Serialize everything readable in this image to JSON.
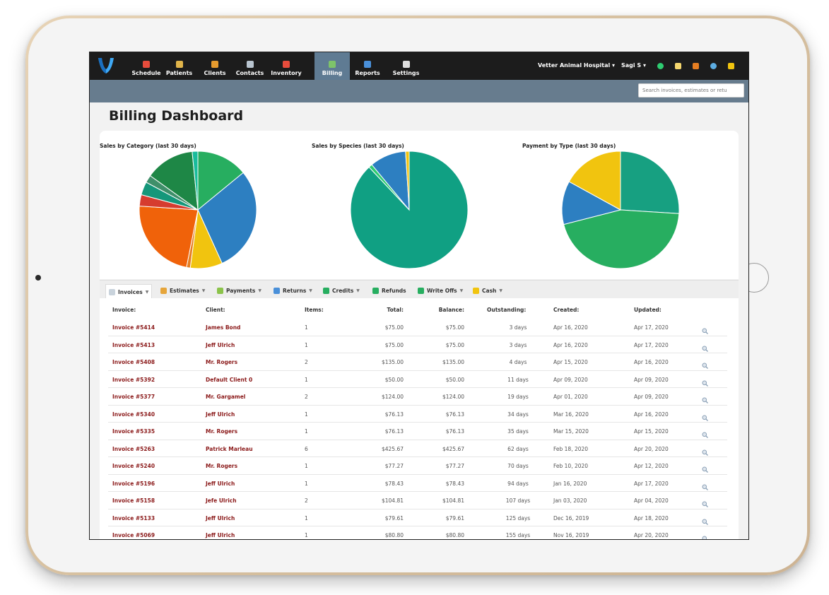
{
  "nav": {
    "items": [
      {
        "label": "Schedule",
        "icon": "calendar-icon",
        "color": "#e74c3c"
      },
      {
        "label": "Patients",
        "icon": "patient-icon",
        "color": "#e0b44a"
      },
      {
        "label": "Clients",
        "icon": "client-icon",
        "color": "#e69b2e"
      },
      {
        "label": "Contacts",
        "icon": "contacts-icon",
        "color": "#b8c4cf"
      },
      {
        "label": "Inventory",
        "icon": "pill-icon",
        "color": "#e74c3c"
      },
      {
        "label": "Billing",
        "icon": "billing-icon",
        "color": "#7ec36a"
      },
      {
        "label": "Reports",
        "icon": "reports-icon",
        "color": "#4a90d9"
      },
      {
        "label": "Settings",
        "icon": "gear-icon",
        "color": "#dddddd"
      }
    ],
    "active": "Billing",
    "hospital": "Vetter Animal Hospital",
    "user": "Sagi S"
  },
  "search": {
    "placeholder": "Search invoices, estimates or retu"
  },
  "page": {
    "title": "Billing Dashboard"
  },
  "charts": [
    {
      "title": "Sales by Category (last 30 days)",
      "chart_data": {
        "type": "pie",
        "slices": [
          {
            "value": 13.5,
            "color": "#27ae60"
          },
          {
            "value": 28,
            "color": "#2d7fc1"
          },
          {
            "value": 8.5,
            "color": "#f1c40f"
          },
          {
            "value": 1,
            "color": "#e67e22"
          },
          {
            "value": 22,
            "color": "#f0620a"
          },
          {
            "value": 3,
            "color": "#d63c2f"
          },
          {
            "value": 3.5,
            "color": "#15977a"
          },
          {
            "value": 2,
            "color": "#3f8f6a"
          },
          {
            "value": 13,
            "color": "#1e8746"
          },
          {
            "value": 1.5,
            "color": "#1abc9c"
          }
        ]
      }
    },
    {
      "title": "Sales by Species (last 30 days)",
      "chart_data": {
        "type": "pie",
        "slices": [
          {
            "value": 88,
            "color": "#10a083"
          },
          {
            "value": 1,
            "color": "#2ecc71"
          },
          {
            "value": 10,
            "color": "#2d7fc1"
          },
          {
            "value": 1,
            "color": "#f1c40f"
          }
        ]
      }
    },
    {
      "title": "Payment by Type (last 30 days)",
      "chart_data": {
        "type": "pie",
        "slices": [
          {
            "value": 26,
            "color": "#17a081"
          },
          {
            "value": 45,
            "color": "#27ae60"
          },
          {
            "value": 12,
            "color": "#2d7fc1"
          },
          {
            "value": 17,
            "color": "#f1c40f"
          }
        ]
      }
    }
  ],
  "tabs": [
    {
      "label": "Invoices",
      "icon": "document-icon",
      "color": "#c9d3dc",
      "caret": true
    },
    {
      "label": "Estimates",
      "icon": "estimate-icon",
      "color": "#e6a53a",
      "caret": true
    },
    {
      "label": "Payments",
      "icon": "payment-icon",
      "color": "#8bc34a",
      "caret": true
    },
    {
      "label": "Returns",
      "icon": "return-icon",
      "color": "#4a90d9",
      "caret": true
    },
    {
      "label": "Credits",
      "icon": "credit-icon",
      "color": "#27ae60",
      "caret": true
    },
    {
      "label": "Refunds",
      "icon": "refund-icon",
      "color": "#27ae60",
      "caret": false
    },
    {
      "label": "Write Offs",
      "icon": "write-off-icon",
      "color": "#27ae60",
      "caret": true
    },
    {
      "label": "Cash",
      "icon": "cash-icon",
      "color": "#f1c40f",
      "caret": true
    }
  ],
  "table": {
    "headers": [
      "Invoice:",
      "Client:",
      "Items:",
      "Total:",
      "Balance:",
      "Outstanding:",
      "Created:",
      "Updated:"
    ],
    "rows": [
      [
        "Invoice #5414",
        "James Bond",
        "1",
        "$75.00",
        "$75.00",
        "3 days",
        "Apr 16, 2020",
        "Apr 17, 2020"
      ],
      [
        "Invoice #5413",
        "Jeff Ulrich",
        "1",
        "$75.00",
        "$75.00",
        "3 days",
        "Apr 16, 2020",
        "Apr 17, 2020"
      ],
      [
        "Invoice #5408",
        "Mr. Rogers",
        "2",
        "$135.00",
        "$135.00",
        "4 days",
        "Apr 15, 2020",
        "Apr 16, 2020"
      ],
      [
        "Invoice #5392",
        "Default Client 0",
        "1",
        "$50.00",
        "$50.00",
        "11 days",
        "Apr 09, 2020",
        "Apr 09, 2020"
      ],
      [
        "Invoice #5377",
        "Mr. Gargamel",
        "2",
        "$124.00",
        "$124.00",
        "19 days",
        "Apr 01, 2020",
        "Apr 09, 2020"
      ],
      [
        "Invoice #5340",
        "Jeff Ulrich",
        "1",
        "$76.13",
        "$76.13",
        "34 days",
        "Mar 16, 2020",
        "Apr 16, 2020"
      ],
      [
        "Invoice #5335",
        "Mr. Rogers",
        "1",
        "$76.13",
        "$76.13",
        "35 days",
        "Mar 15, 2020",
        "Apr 15, 2020"
      ],
      [
        "Invoice #5263",
        "Patrick Marleau",
        "6",
        "$425.67",
        "$425.67",
        "62 days",
        "Feb 18, 2020",
        "Apr 20, 2020"
      ],
      [
        "Invoice #5240",
        "Mr. Rogers",
        "1",
        "$77.27",
        "$77.27",
        "70 days",
        "Feb 10, 2020",
        "Apr 12, 2020"
      ],
      [
        "Invoice #5196",
        "Jeff Ulrich",
        "1",
        "$78.43",
        "$78.43",
        "94 days",
        "Jan 16, 2020",
        "Apr 17, 2020"
      ],
      [
        "Invoice #5158",
        "Jefe Ulrich",
        "2",
        "$104.81",
        "$104.81",
        "107 days",
        "Jan 03, 2020",
        "Apr 04, 2020"
      ],
      [
        "Invoice #5133",
        "Jeff Ulrich",
        "1",
        "$79.61",
        "$79.61",
        "125 days",
        "Dec 16, 2019",
        "Apr 18, 2020"
      ],
      [
        "Invoice #5069",
        "Jeff Ulrich",
        "1",
        "$80.80",
        "$80.80",
        "155 days",
        "Nov 16, 2019",
        "Apr 20, 2020"
      ]
    ]
  }
}
